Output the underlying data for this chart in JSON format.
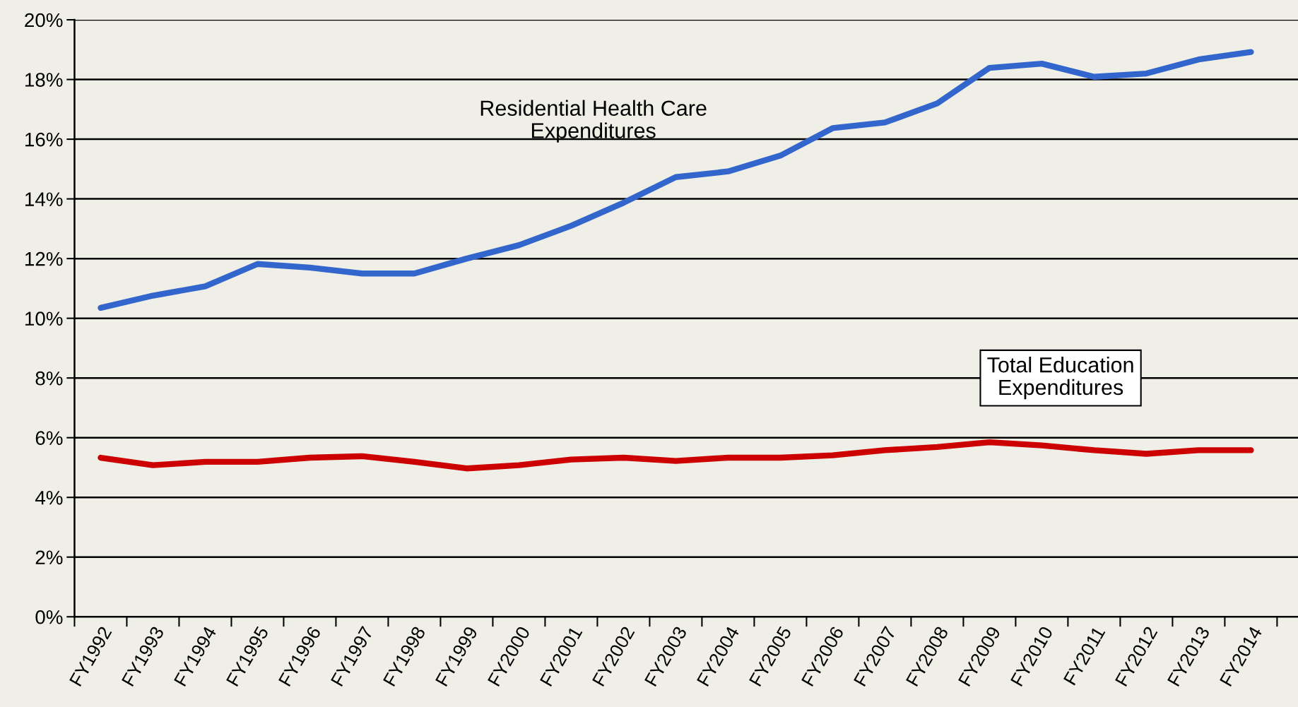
{
  "chart_data": {
    "type": "line",
    "categories": [
      "FY1992",
      "FY1993",
      "FY1994",
      "FY1995",
      "FY1996",
      "FY1997",
      "FY1998",
      "FY1999",
      "FY2000",
      "FY2001",
      "FY2002",
      "FY2003",
      "FY2004",
      "FY2005",
      "FY2006",
      "FY2007",
      "FY2008",
      "FY2009",
      "FY2010",
      "FY2011",
      "FY2012",
      "FY2013",
      "FY2014"
    ],
    "series": [
      {
        "name": "Residential Health Care\nExpenditures",
        "color": "#3366cc",
        "values": [
          10.35,
          10.76,
          11.07,
          11.82,
          11.7,
          11.5,
          11.5,
          12.0,
          12.45,
          13.1,
          13.87,
          14.73,
          14.92,
          15.45,
          16.37,
          16.56,
          17.2,
          18.39,
          18.53,
          18.09,
          18.2,
          18.67,
          18.92
        ]
      },
      {
        "name": "Total Education\nExpenditures",
        "color": "#cc0000",
        "values": [
          5.33,
          5.08,
          5.19,
          5.19,
          5.33,
          5.38,
          5.19,
          4.97,
          5.08,
          5.27,
          5.33,
          5.22,
          5.33,
          5.33,
          5.41,
          5.58,
          5.69,
          5.85,
          5.74,
          5.58,
          5.46,
          5.58,
          5.58
        ]
      }
    ],
    "ylim": [
      0,
      20
    ],
    "yticks": [
      {
        "value": 0,
        "label": "0%"
      },
      {
        "value": 2,
        "label": "2%"
      },
      {
        "value": 4,
        "label": "4%"
      },
      {
        "value": 6,
        "label": "6%"
      },
      {
        "value": 8,
        "label": "8%"
      },
      {
        "value": 10,
        "label": "10%"
      },
      {
        "value": 12,
        "label": "12%"
      },
      {
        "value": 14,
        "label": "14%"
      },
      {
        "value": 16,
        "label": "16%"
      },
      {
        "value": 18,
        "label": "18%"
      },
      {
        "value": 20,
        "label": "20%"
      }
    ],
    "grid": "y",
    "legend": false,
    "marker": "none",
    "line_style": "solid"
  }
}
